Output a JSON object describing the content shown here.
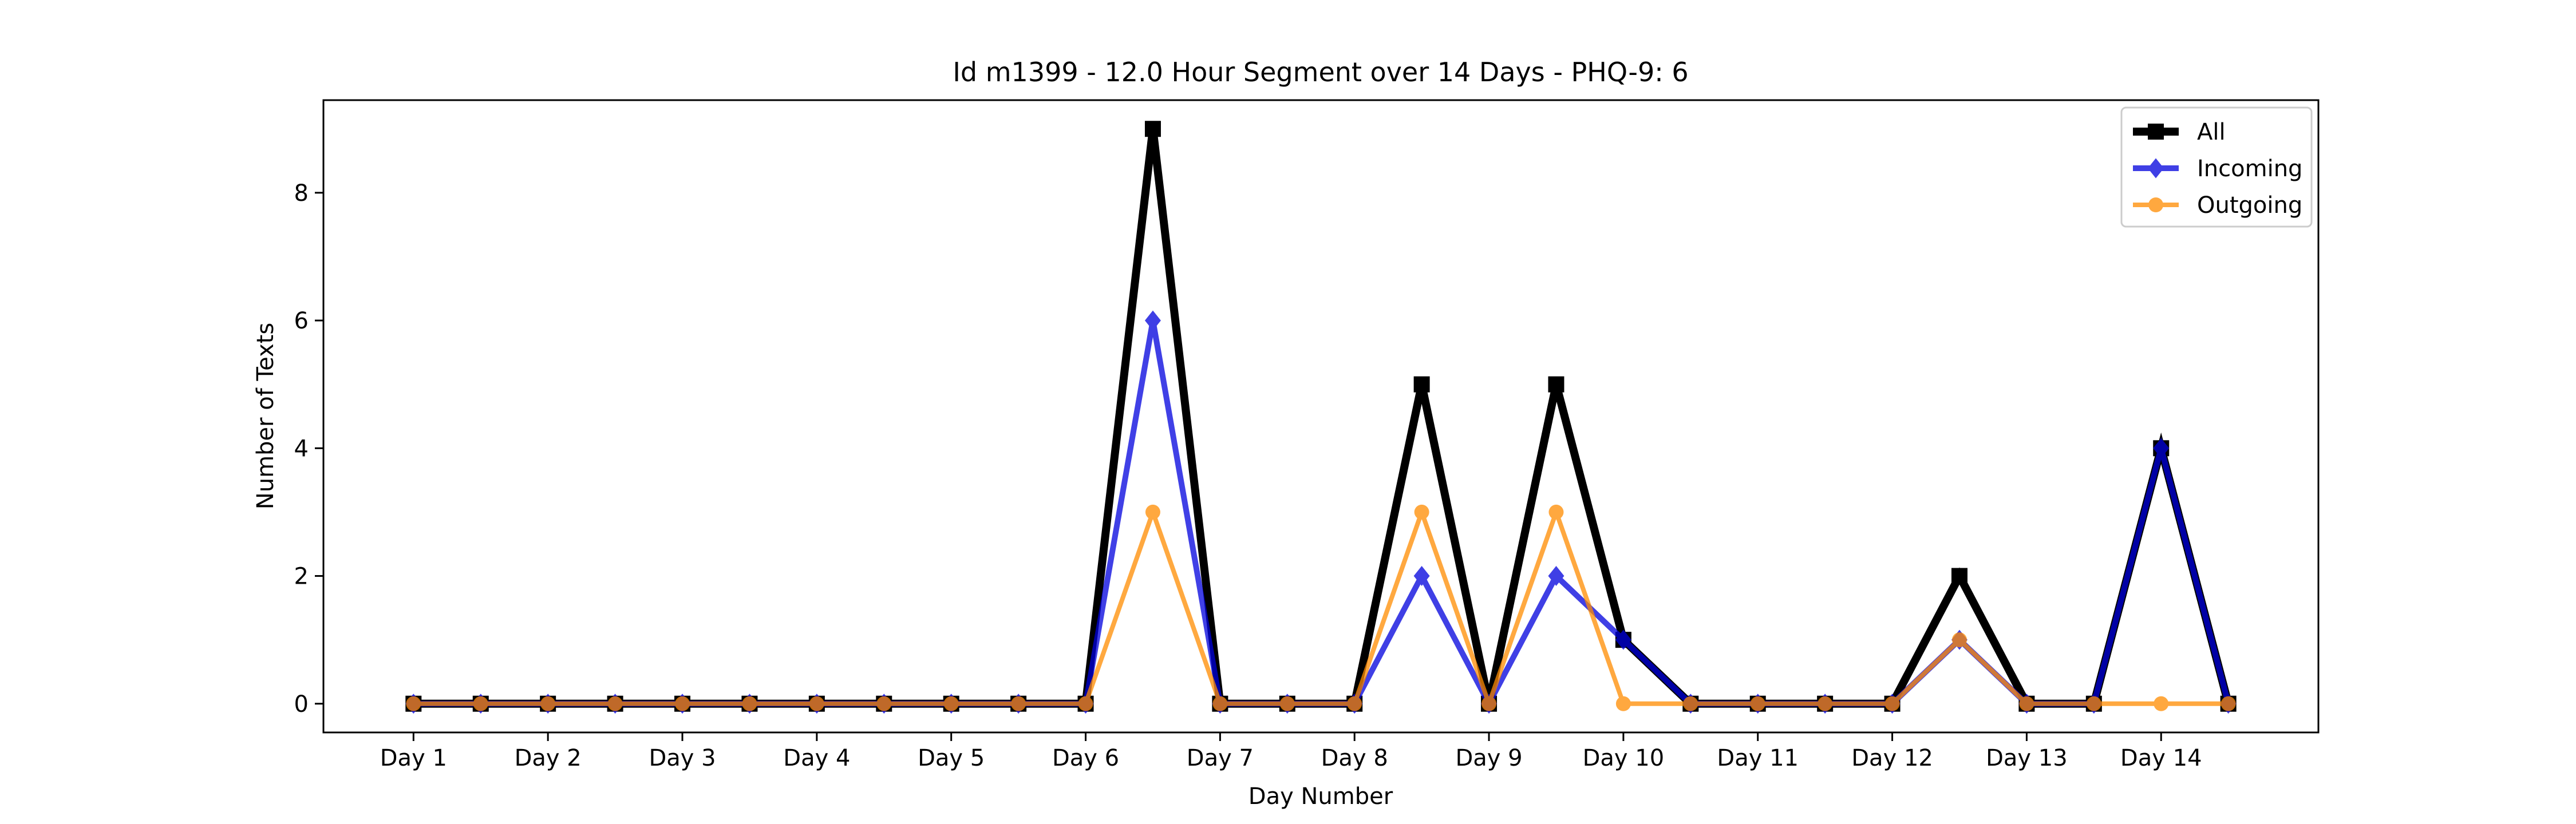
{
  "chart_data": {
    "type": "line",
    "title": "Id m1399 - 12.0 Hour Segment over 14 Days - PHQ-9: 6",
    "xlabel": "Day Number",
    "ylabel": "Number of Texts",
    "x": [
      1,
      1.5,
      2,
      2.5,
      3,
      3.5,
      4,
      4.5,
      5,
      5.5,
      6,
      6.5,
      7,
      7.5,
      8,
      8.5,
      9,
      9.5,
      10,
      10.5,
      11,
      11.5,
      12,
      12.5,
      13,
      13.5,
      14,
      14.5
    ],
    "xticks": [
      1,
      2,
      3,
      4,
      5,
      6,
      7,
      8,
      9,
      10,
      11,
      12,
      13,
      14
    ],
    "xticklabels": [
      "Day 1",
      "Day 2",
      "Day 3",
      "Day 4",
      "Day 5",
      "Day 6",
      "Day 7",
      "Day 8",
      "Day 9",
      "Day 10",
      "Day 11",
      "Day 12",
      "Day 13",
      "Day 14"
    ],
    "yticks": [
      0,
      2,
      4,
      6,
      8
    ],
    "xlim": [
      0.33,
      15.17
    ],
    "ylim": [
      -0.45,
      9.45
    ],
    "grid": false,
    "legend_position": "top-right",
    "series": [
      {
        "name": "All",
        "color": "#000000",
        "marker": "square",
        "values": [
          0,
          0,
          0,
          0,
          0,
          0,
          0,
          0,
          0,
          0,
          0,
          9,
          0,
          0,
          0,
          5,
          0,
          5,
          1,
          0,
          0,
          0,
          0,
          2,
          0,
          0,
          4,
          0
        ]
      },
      {
        "name": "Incoming",
        "color": "#0000dd",
        "marker": "diamond",
        "values": [
          0,
          0,
          0,
          0,
          0,
          0,
          0,
          0,
          0,
          0,
          0,
          6,
          0,
          0,
          0,
          2,
          0,
          2,
          1,
          0,
          0,
          0,
          0,
          1,
          0,
          0,
          4,
          0
        ]
      },
      {
        "name": "Outgoing",
        "color": "#ff8c00",
        "marker": "circle",
        "values": [
          0,
          0,
          0,
          0,
          0,
          0,
          0,
          0,
          0,
          0,
          0,
          3,
          0,
          0,
          0,
          3,
          0,
          3,
          0,
          0,
          0,
          0,
          0,
          1,
          0,
          0,
          0,
          0
        ]
      }
    ]
  }
}
